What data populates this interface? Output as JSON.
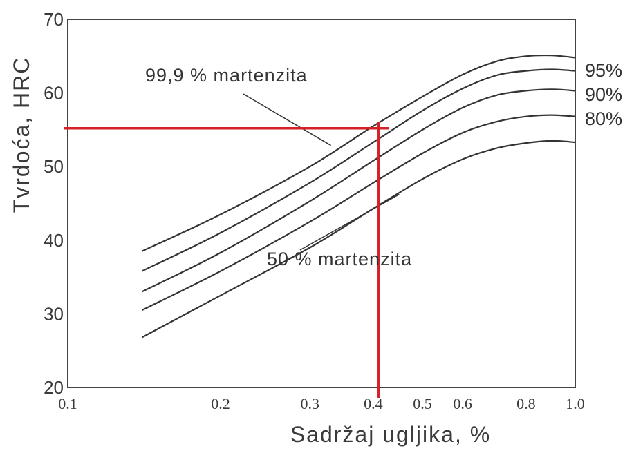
{
  "chart_data": {
    "type": "line",
    "title": "",
    "xlabel": "Sadržaj ugljika,   %",
    "ylabel": "Tvrdoća,  HRC",
    "xlim": [
      0.1,
      1.0
    ],
    "ylim": [
      20,
      70
    ],
    "x_scale": "log",
    "x_ticks": [
      0.1,
      0.2,
      0.3,
      0.4,
      0.5,
      0.6,
      0.8,
      1.0
    ],
    "x_tick_labels": [
      "0.1",
      "0.2",
      "0.3",
      "0.4",
      "0.5",
      "0.6",
      "0.8",
      "1.0"
    ],
    "y_ticks": [
      20,
      30,
      40,
      50,
      60,
      70
    ],
    "y_tick_labels": [
      "20",
      "30",
      "40",
      "50",
      "60",
      "70"
    ],
    "grid": false,
    "legend": "none",
    "series": [
      {
        "name": "99,9 % martenzita",
        "x": [
          0.14,
          0.2,
          0.3,
          0.4,
          0.5,
          0.6,
          0.7,
          0.8,
          0.9,
          1.0
        ],
        "y": [
          38.5,
          43.5,
          50.0,
          55.5,
          59.5,
          62.5,
          64.3,
          65.0,
          65.1,
          64.8
        ]
      },
      {
        "name": "95%",
        "x": [
          0.14,
          0.2,
          0.3,
          0.4,
          0.5,
          0.6,
          0.7,
          0.8,
          0.9,
          1.0
        ],
        "y": [
          35.8,
          41.0,
          47.8,
          53.3,
          57.6,
          60.6,
          62.4,
          63.0,
          63.2,
          63.0
        ]
      },
      {
        "name": "90%",
        "x": [
          0.14,
          0.2,
          0.3,
          0.4,
          0.5,
          0.6,
          0.7,
          0.8,
          0.9,
          1.0
        ],
        "y": [
          33.0,
          38.3,
          45.3,
          50.8,
          55.0,
          58.0,
          59.7,
          60.3,
          60.5,
          60.3
        ]
      },
      {
        "name": "80%",
        "x": [
          0.14,
          0.2,
          0.3,
          0.4,
          0.5,
          0.6,
          0.7,
          0.8,
          0.9,
          1.0
        ],
        "y": [
          30.5,
          35.8,
          42.5,
          47.8,
          51.8,
          54.6,
          56.1,
          56.8,
          57.0,
          56.8
        ]
      },
      {
        "name": "50 % martenzita",
        "x": [
          0.14,
          0.2,
          0.3,
          0.4,
          0.5,
          0.6,
          0.7,
          0.8,
          0.9,
          1.0
        ],
        "y": [
          26.8,
          32.5,
          39.0,
          44.3,
          48.3,
          51.0,
          52.5,
          53.2,
          53.5,
          53.3
        ]
      }
    ],
    "annotations": {
      "top_label": "99,9  %  martenzita",
      "bottom_label": "50  %  martenzita",
      "right_labels": [
        "95%",
        "90%",
        "80%"
      ]
    },
    "reference_lines": {
      "color": "#d42027",
      "vertical_x": 0.41,
      "horizontal_y": 55.2
    }
  }
}
